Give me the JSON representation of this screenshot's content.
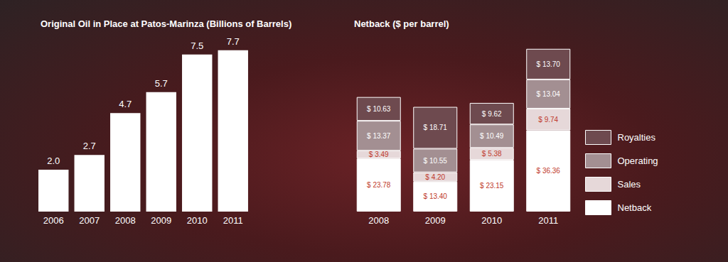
{
  "chart_data": [
    {
      "type": "bar",
      "title": "Original Oil in Place at Patos-Marinza (Billions of Barrels)",
      "categories": [
        "2006",
        "2007",
        "2008",
        "2009",
        "2010",
        "2011"
      ],
      "values": [
        2.0,
        2.7,
        4.7,
        5.7,
        7.5,
        7.7
      ],
      "value_labels": [
        "2.0",
        "2.7",
        "4.7",
        "5.7",
        "7.5",
        "7.7"
      ],
      "color": "#ffffff",
      "ylim": [
        0,
        8
      ],
      "data_labels": true,
      "tick_labels": "x",
      "grid": false
    },
    {
      "type": "bar",
      "title": "Netback ($ per barrel)",
      "categories": [
        "2008",
        "2009",
        "2010",
        "2011"
      ],
      "stacked": true,
      "series": [
        {
          "name": "Netback",
          "color": "#ffffff",
          "values": [
            23.78,
            13.4,
            23.15,
            36.36
          ],
          "value_labels": [
            "$ 23.78",
            "$ 13.40",
            "$ 23.15",
            "$ 36.36"
          ]
        },
        {
          "name": "Sales",
          "color": "#e6d8d9",
          "values": [
            3.49,
            4.2,
            5.38,
            9.74
          ],
          "value_labels": [
            "$ 3.49",
            "$ 4.20",
            "$ 5.38",
            "$ 9.74"
          ]
        },
        {
          "name": "Operating",
          "color": "#a38f92",
          "values": [
            13.37,
            10.55,
            10.49,
            13.04
          ],
          "value_labels": [
            "$ 13.37",
            "$ 10.55",
            "$ 10.49",
            "$ 13.04"
          ]
        },
        {
          "name": "Royalties",
          "color": "#6e4a4f",
          "values": [
            10.63,
            18.71,
            9.62,
            13.7
          ],
          "value_labels": [
            "$ 10.63",
            "$ 18.71",
            "$ 9.62",
            "$ 13.70"
          ]
        }
      ],
      "ylim": [
        0,
        75
      ],
      "data_labels": true,
      "tick_labels": "x",
      "legend": "right",
      "grid": false
    }
  ]
}
